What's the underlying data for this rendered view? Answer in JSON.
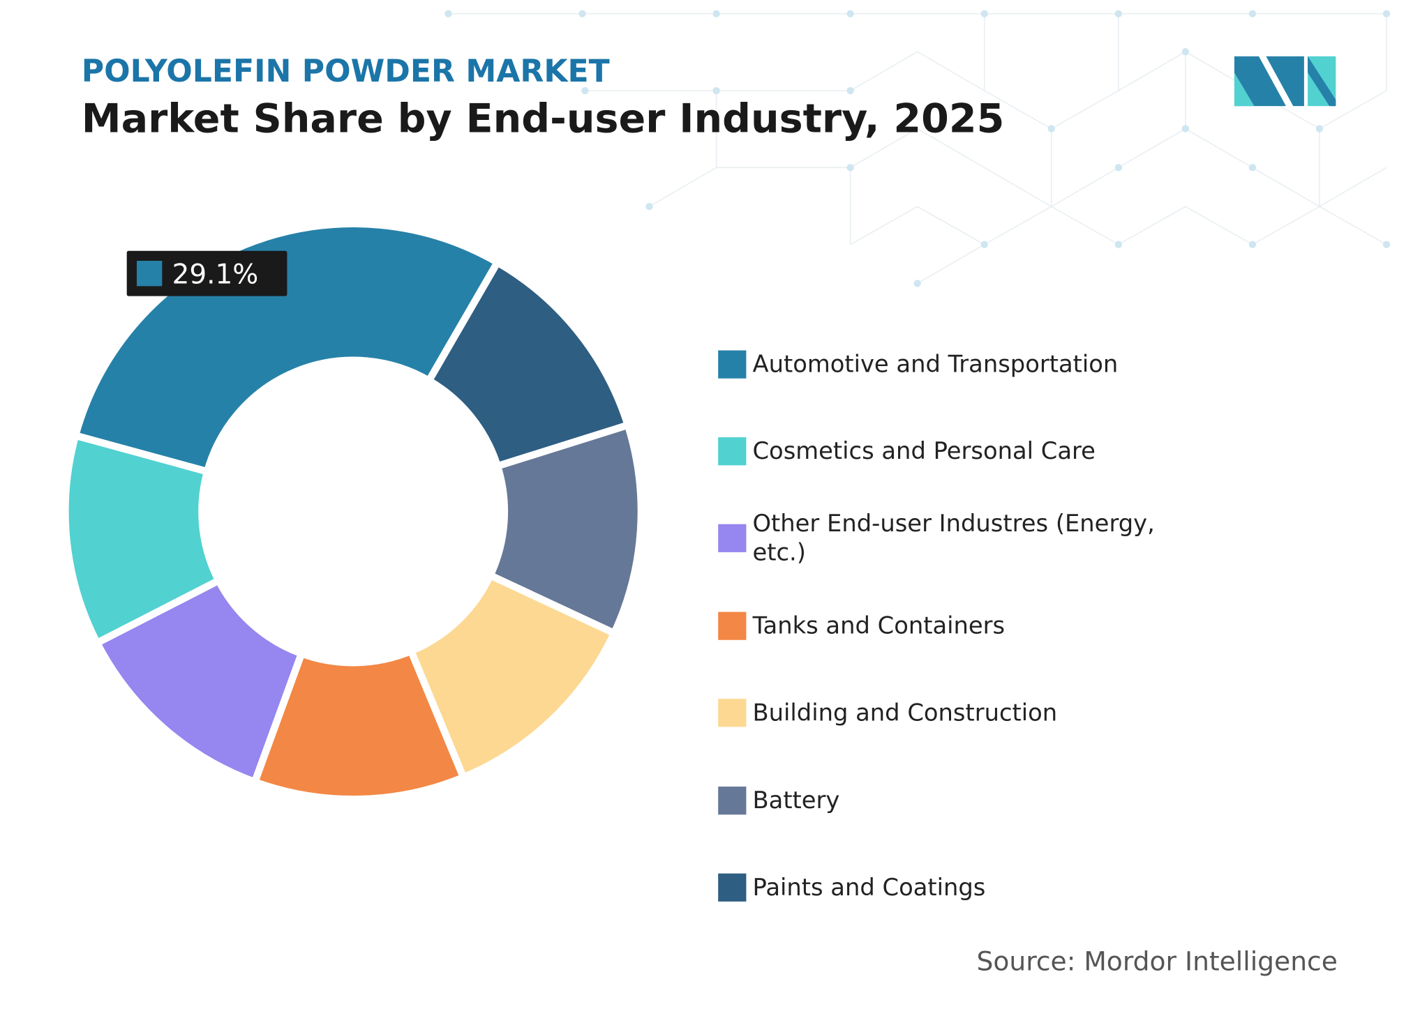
{
  "chart_data": {
    "type": "donut",
    "subtitle": "POLYOLEFIN POWDER MARKET",
    "title": "Market Share by End-user Industry, 2025",
    "categories": [
      "Automotive and Transportation",
      "Cosmetics and Personal Care",
      "Other End-user Industres (Energy, etc.)",
      "Tanks and Containers",
      "Building and Construction",
      "Battery",
      "Paints and Coatings"
    ],
    "values": [
      29.1,
      11.8,
      11.9,
      11.8,
      11.8,
      11.8,
      11.8
    ],
    "value_labels": [
      "29.1%",
      null,
      null,
      null,
      null,
      null,
      null
    ],
    "colors": [
      "#2681a8",
      "#52d1d1",
      "#9686ef",
      "#f38745",
      "#fdd892",
      "#667897",
      "#2e5e82"
    ],
    "source": "Source: Mordor Intelligence"
  }
}
